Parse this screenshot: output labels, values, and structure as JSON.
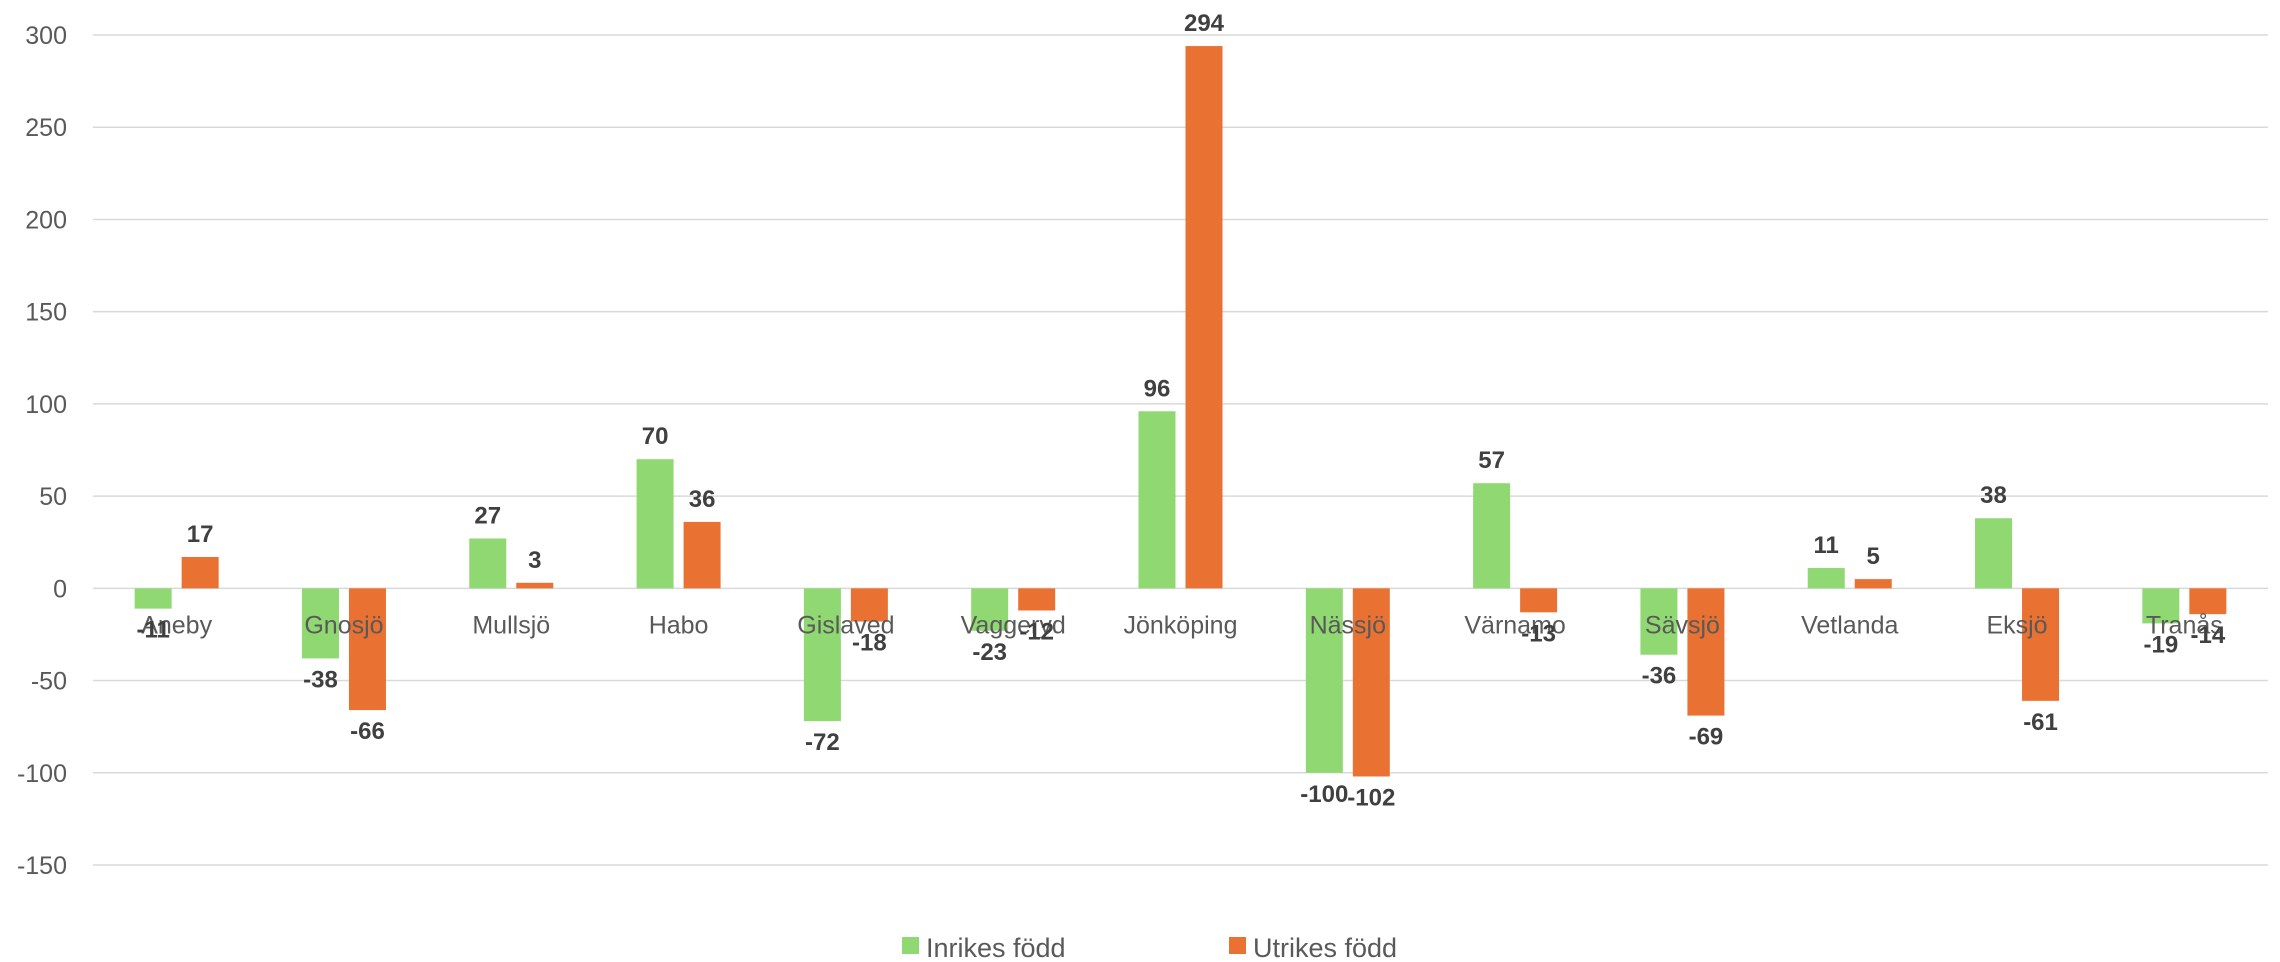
{
  "chart_data": {
    "type": "bar",
    "categories": [
      "Aneby",
      "Gnosjö",
      "Mullsjö",
      "Habo",
      "Gislaved",
      "Vaggeryd",
      "Jönköping",
      "Nässjö",
      "Värnamo",
      "Sävsjö",
      "Vetlanda",
      "Eksjö",
      "Tranås"
    ],
    "series": [
      {
        "name": "Inrikes född",
        "color": "#8FD872",
        "values": [
          -11,
          -38,
          27,
          70,
          -72,
          -23,
          96,
          -100,
          57,
          -36,
          11,
          38,
          -19
        ]
      },
      {
        "name": "Utrikes född",
        "color": "#E97132",
        "values": [
          17,
          -66,
          3,
          36,
          -18,
          -12,
          294,
          -102,
          -13,
          -69,
          5,
          -61,
          -14
        ]
      }
    ],
    "yticks": [
      "300",
      "250",
      "200",
      "150",
      "100",
      "50",
      "0",
      "-50",
      "-100",
      "-150"
    ],
    "ylim": [
      -150,
      300
    ],
    "grid": true,
    "legend_position": "bottom"
  }
}
